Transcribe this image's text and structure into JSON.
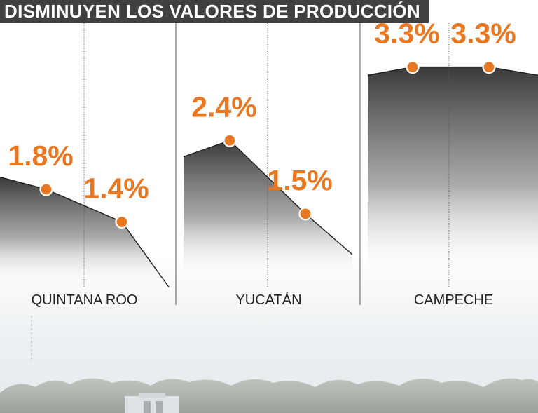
{
  "title": "DISMINUYEN LOS VALORES DE PRODUCCIÓN",
  "colors": {
    "accent": "#e87722",
    "title_bg": "#404040",
    "area_top": "#3f3f3f",
    "line": "#222222",
    "label": "#222222"
  },
  "chart_data": {
    "type": "area",
    "title": "DISMINUYEN LOS VALORES DE PRODUCCIÓN",
    "xlabel": "",
    "ylabel": "",
    "grid": false,
    "unit": "%",
    "panels": [
      {
        "name": "QUINTANA ROO",
        "values": [
          1.8,
          1.4
        ],
        "labels": [
          "1.8%",
          "1.4%"
        ]
      },
      {
        "name": "YUCATÁN",
        "values": [
          2.4,
          1.5
        ],
        "labels": [
          "2.4%",
          "1.5%"
        ]
      },
      {
        "name": "CAMPECHE",
        "values": [
          3.3,
          3.3
        ],
        "labels": [
          "3.3%",
          "3.3%"
        ]
      }
    ]
  }
}
